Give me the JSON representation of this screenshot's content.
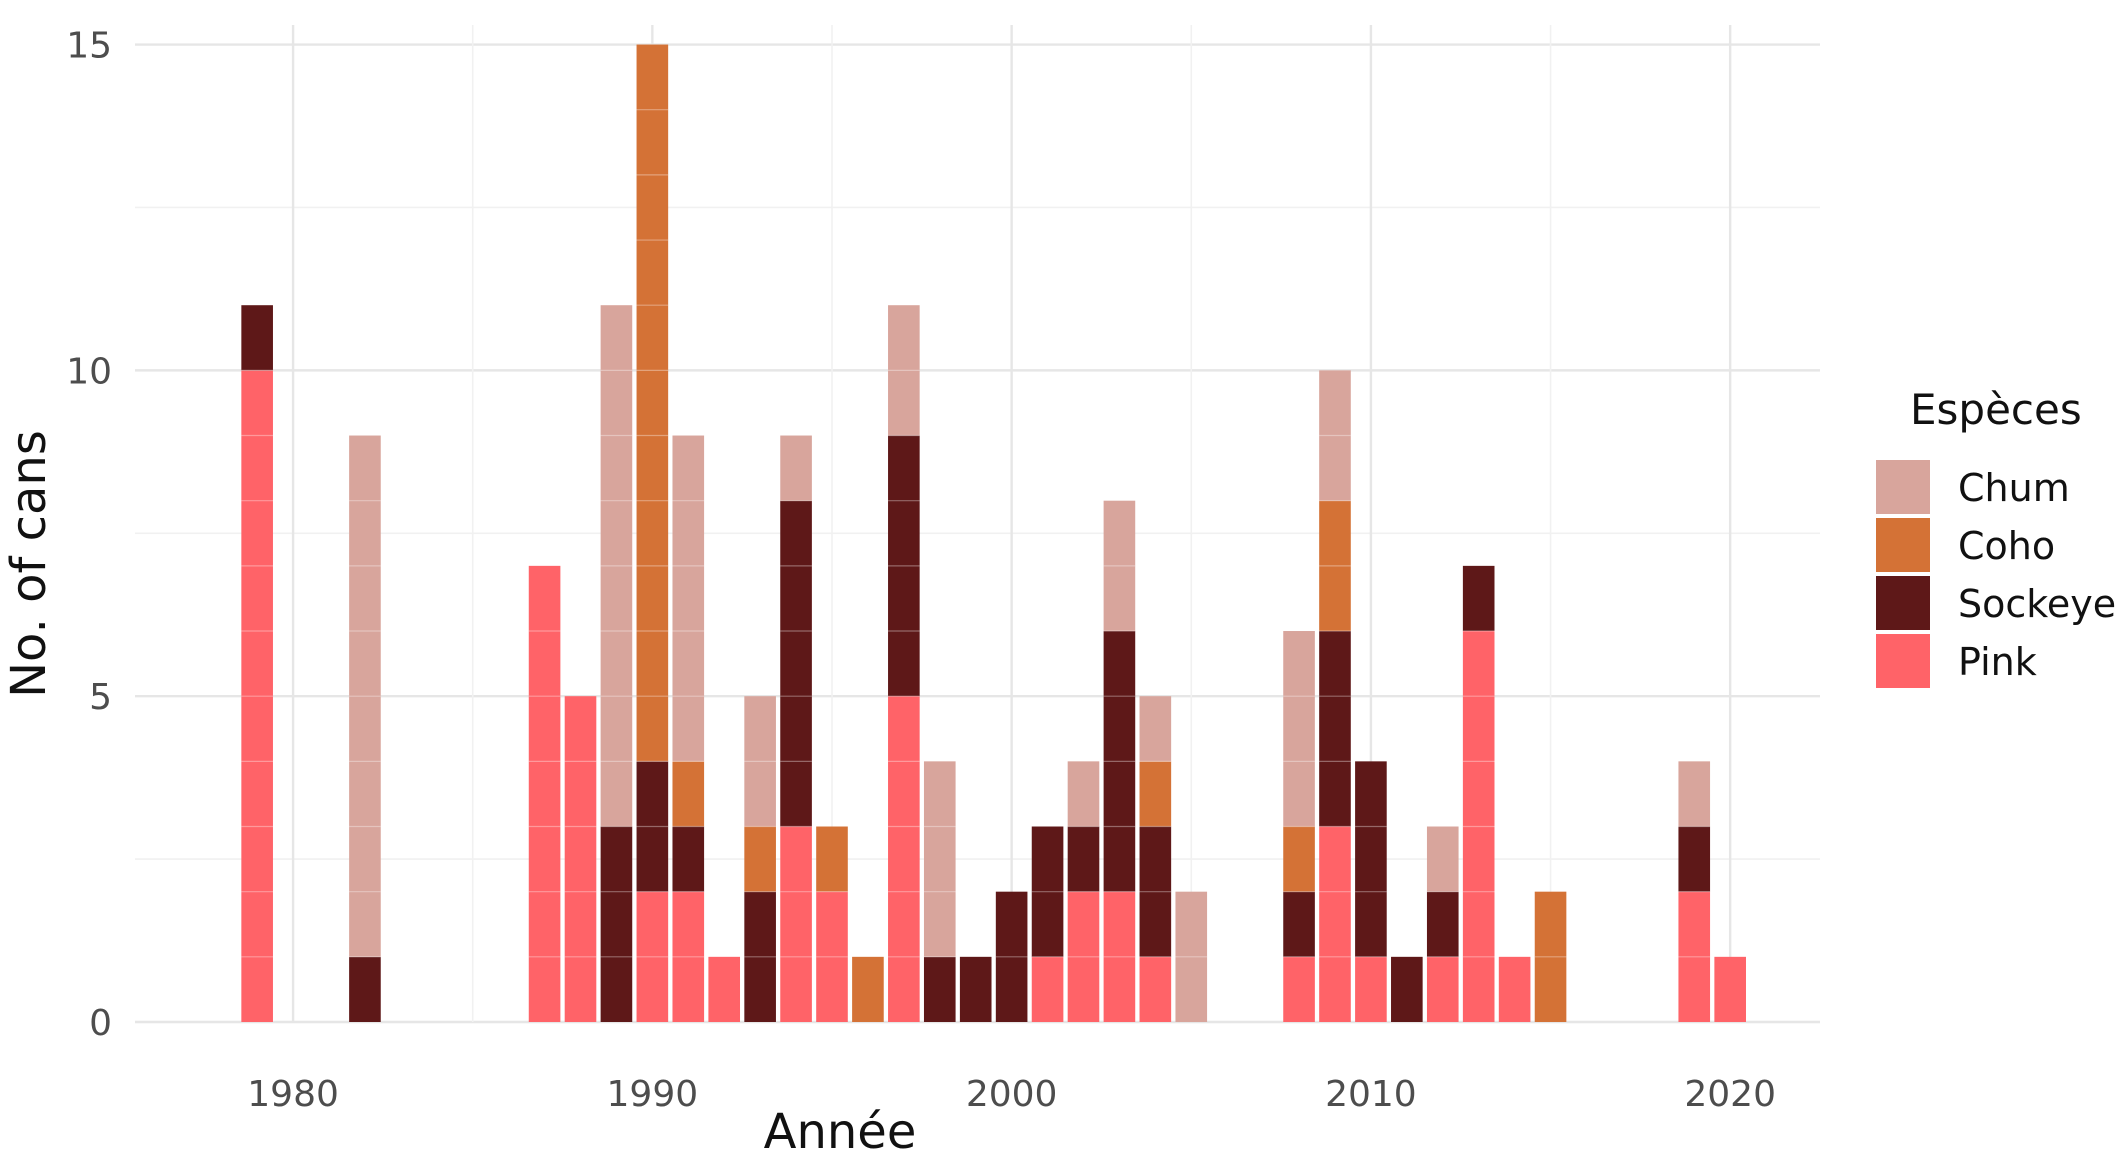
{
  "chart_data": {
    "type": "bar",
    "stacked": true,
    "xlabel": "Année",
    "ylabel": "No. of cans",
    "xlim": [
      1975.6,
      2022.5
    ],
    "ylim": [
      0,
      15.3
    ],
    "x_ticks": [
      1980,
      1990,
      2000,
      2010,
      2020
    ],
    "y_ticks": [
      0,
      5,
      10,
      15
    ],
    "grid": true,
    "legend": {
      "title": "Espèces",
      "position": "right",
      "entries": [
        "Chum",
        "Coho",
        "Sockeye",
        "Pink"
      ]
    },
    "stack_order_bottom_to_top": [
      "Pink",
      "Sockeye",
      "Coho",
      "Chum"
    ],
    "colors": {
      "Chum": "#d8a59c",
      "Coho": "#d47236",
      "Sockeye": "#5e1818",
      "Pink": "#ff6368"
    },
    "x": [
      1979,
      1982,
      1987,
      1988,
      1989,
      1990,
      1991,
      1992,
      1993,
      1994,
      1995,
      1996,
      1997,
      1998,
      1999,
      2000,
      2001,
      2002,
      2003,
      2004,
      2005,
      2008,
      2009,
      2010,
      2011,
      2012,
      2013,
      2014,
      2015,
      2019,
      2020
    ],
    "series": [
      {
        "name": "Pink",
        "values": [
          10,
          0,
          7,
          5,
          0,
          2,
          2,
          1,
          0,
          3,
          2,
          0,
          5,
          0,
          0,
          0,
          1,
          2,
          2,
          1,
          0,
          1,
          3,
          1,
          0,
          1,
          6,
          1,
          0,
          2,
          1
        ]
      },
      {
        "name": "Sockeye",
        "values": [
          1,
          1,
          0,
          0,
          3,
          2,
          1,
          0,
          2,
          5,
          0,
          0,
          4,
          1,
          1,
          2,
          2,
          1,
          4,
          2,
          0,
          1,
          3,
          3,
          1,
          1,
          1,
          0,
          0,
          1,
          0
        ]
      },
      {
        "name": "Coho",
        "values": [
          0,
          0,
          0,
          0,
          0,
          11,
          1,
          0,
          1,
          0,
          1,
          1,
          0,
          0,
          0,
          0,
          0,
          0,
          0,
          1,
          0,
          1,
          2,
          0,
          0,
          0,
          0,
          0,
          2,
          0,
          0
        ]
      },
      {
        "name": "Chum",
        "values": [
          0,
          8,
          0,
          0,
          8,
          0,
          5,
          0,
          2,
          1,
          0,
          0,
          2,
          3,
          0,
          0,
          0,
          1,
          2,
          1,
          2,
          3,
          2,
          0,
          0,
          1,
          0,
          0,
          0,
          1,
          0
        ]
      }
    ]
  }
}
